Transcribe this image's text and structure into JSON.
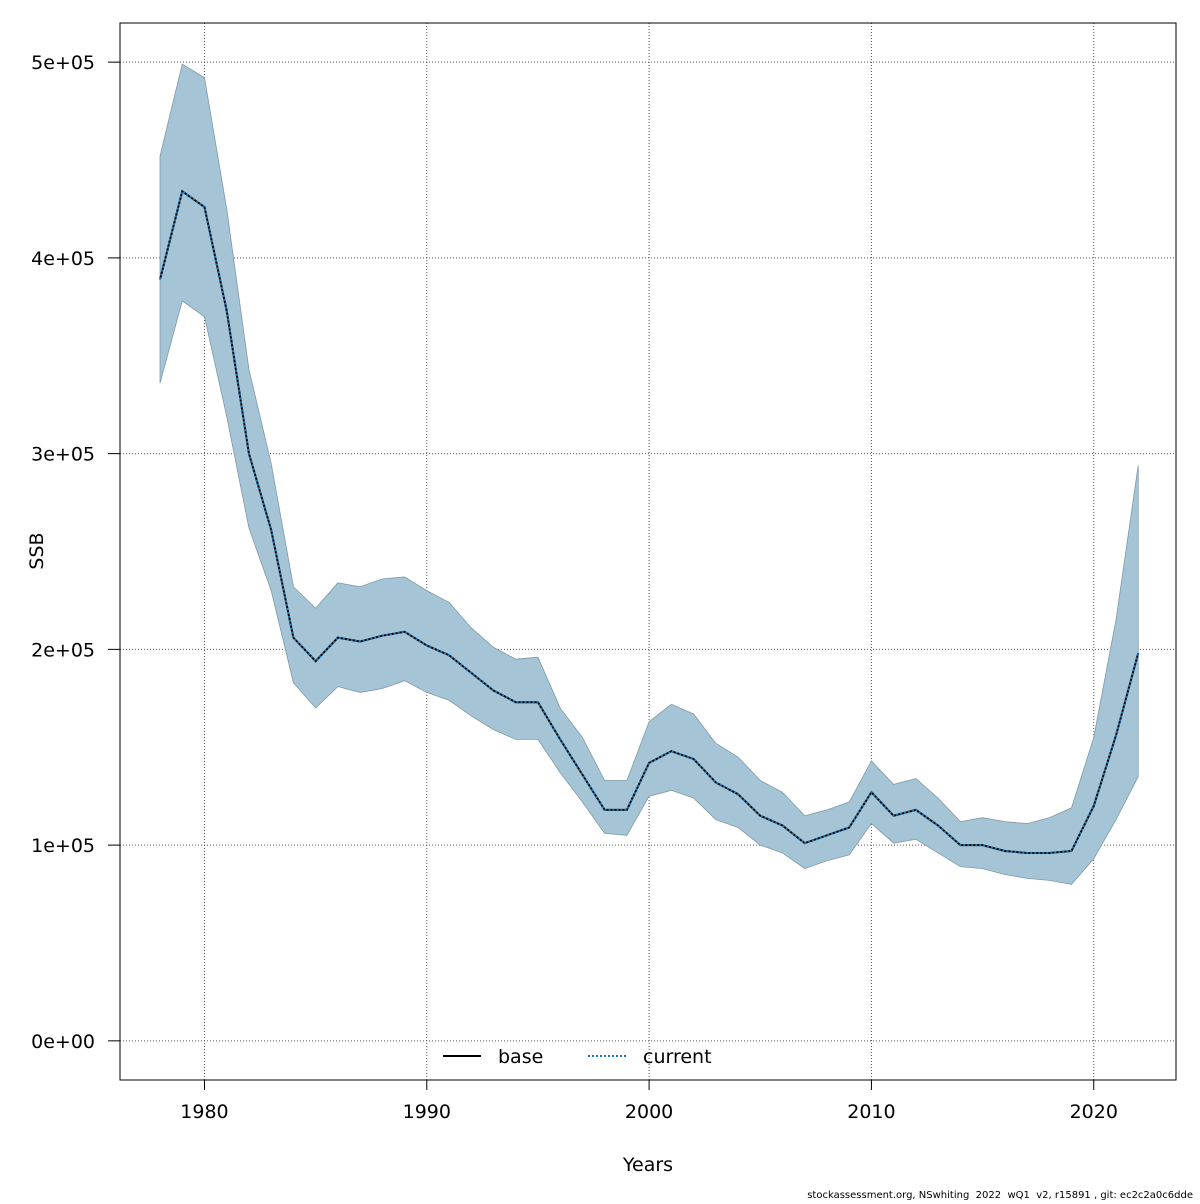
{
  "chart_data": {
    "type": "line",
    "title": "",
    "xlabel": "Years",
    "ylabel": "SSB",
    "xlim": [
      1976.2,
      2023.7
    ],
    "ylim": [
      -20000,
      520000
    ],
    "grid": true,
    "x_ticks": [
      1980,
      1990,
      2000,
      2010,
      2020
    ],
    "x_tick_labels": [
      "1980",
      "1990",
      "2000",
      "2010",
      "2020"
    ],
    "y_ticks": [
      0,
      100000,
      200000,
      300000,
      400000,
      500000
    ],
    "y_tick_labels": [
      "0e+00",
      "1e+05",
      "2e+05",
      "3e+05",
      "4e+05",
      "5e+05"
    ],
    "legend": {
      "placement": "bottom",
      "entries": [
        "base",
        "current"
      ]
    },
    "colors": {
      "band": "#a5c4d5",
      "band_edge": "#7f9aa8",
      "base": "#000000",
      "current": "#1f77b4"
    },
    "x": [
      1978,
      1979,
      1980,
      1981,
      1982,
      1983,
      1984,
      1985,
      1986,
      1987,
      1988,
      1989,
      1990,
      1991,
      1992,
      1993,
      1994,
      1995,
      1996,
      1997,
      1998,
      1999,
      2000,
      2001,
      2002,
      2003,
      2004,
      2005,
      2006,
      2007,
      2008,
      2009,
      2010,
      2011,
      2012,
      2013,
      2014,
      2015,
      2016,
      2017,
      2018,
      2019,
      2020,
      2021,
      2022
    ],
    "series": [
      {
        "name": "base",
        "values": [
          389000,
          434000,
          426000,
          373000,
          300000,
          261000,
          206000,
          194000,
          206000,
          204000,
          207000,
          209000,
          202000,
          197000,
          188000,
          179000,
          173000,
          173000,
          154000,
          136000,
          118000,
          118000,
          142000,
          148000,
          144000,
          132000,
          126000,
          115000,
          110000,
          101000,
          105000,
          109000,
          127000,
          115000,
          118000,
          110000,
          100000,
          100000,
          97000,
          96000,
          96000,
          97000,
          120000,
          156000,
          198000
        ]
      },
      {
        "name": "current",
        "values": [
          389000,
          434000,
          426000,
          373000,
          300000,
          261000,
          206000,
          194000,
          206000,
          204000,
          207000,
          209000,
          202000,
          197000,
          188000,
          179000,
          173000,
          173000,
          154000,
          136000,
          118000,
          118000,
          142000,
          148000,
          144000,
          132000,
          126000,
          115000,
          110000,
          101000,
          105000,
          109000,
          127000,
          115000,
          118000,
          110000,
          100000,
          100000,
          97000,
          96000,
          96000,
          97000,
          120000,
          156000,
          198000
        ]
      }
    ],
    "band": {
      "upper": [
        452000,
        499000,
        492000,
        425000,
        343000,
        295000,
        232000,
        221000,
        234000,
        232000,
        236000,
        237000,
        230000,
        224000,
        211000,
        201000,
        195000,
        196000,
        170000,
        155000,
        133000,
        133000,
        163000,
        172000,
        167000,
        152000,
        145000,
        133000,
        127000,
        115000,
        118000,
        122000,
        143000,
        131000,
        134000,
        124000,
        112000,
        114000,
        112000,
        111000,
        114000,
        119000,
        155000,
        215000,
        294000
      ],
      "lower": [
        336000,
        378000,
        370000,
        319000,
        262000,
        230000,
        183000,
        170000,
        181000,
        178000,
        180000,
        184000,
        178000,
        174000,
        166000,
        159000,
        154000,
        154000,
        137000,
        122000,
        106000,
        105000,
        125000,
        128000,
        124000,
        113000,
        109000,
        100000,
        96000,
        88000,
        92000,
        95000,
        111000,
        101000,
        103000,
        96000,
        89000,
        88000,
        85000,
        83000,
        82000,
        80000,
        93000,
        113000,
        135000
      ]
    }
  },
  "footer": "stockassessment.org, NSwhiting  2022  wQ1  v2, r15891 , git: ec2c2a0c6dde"
}
